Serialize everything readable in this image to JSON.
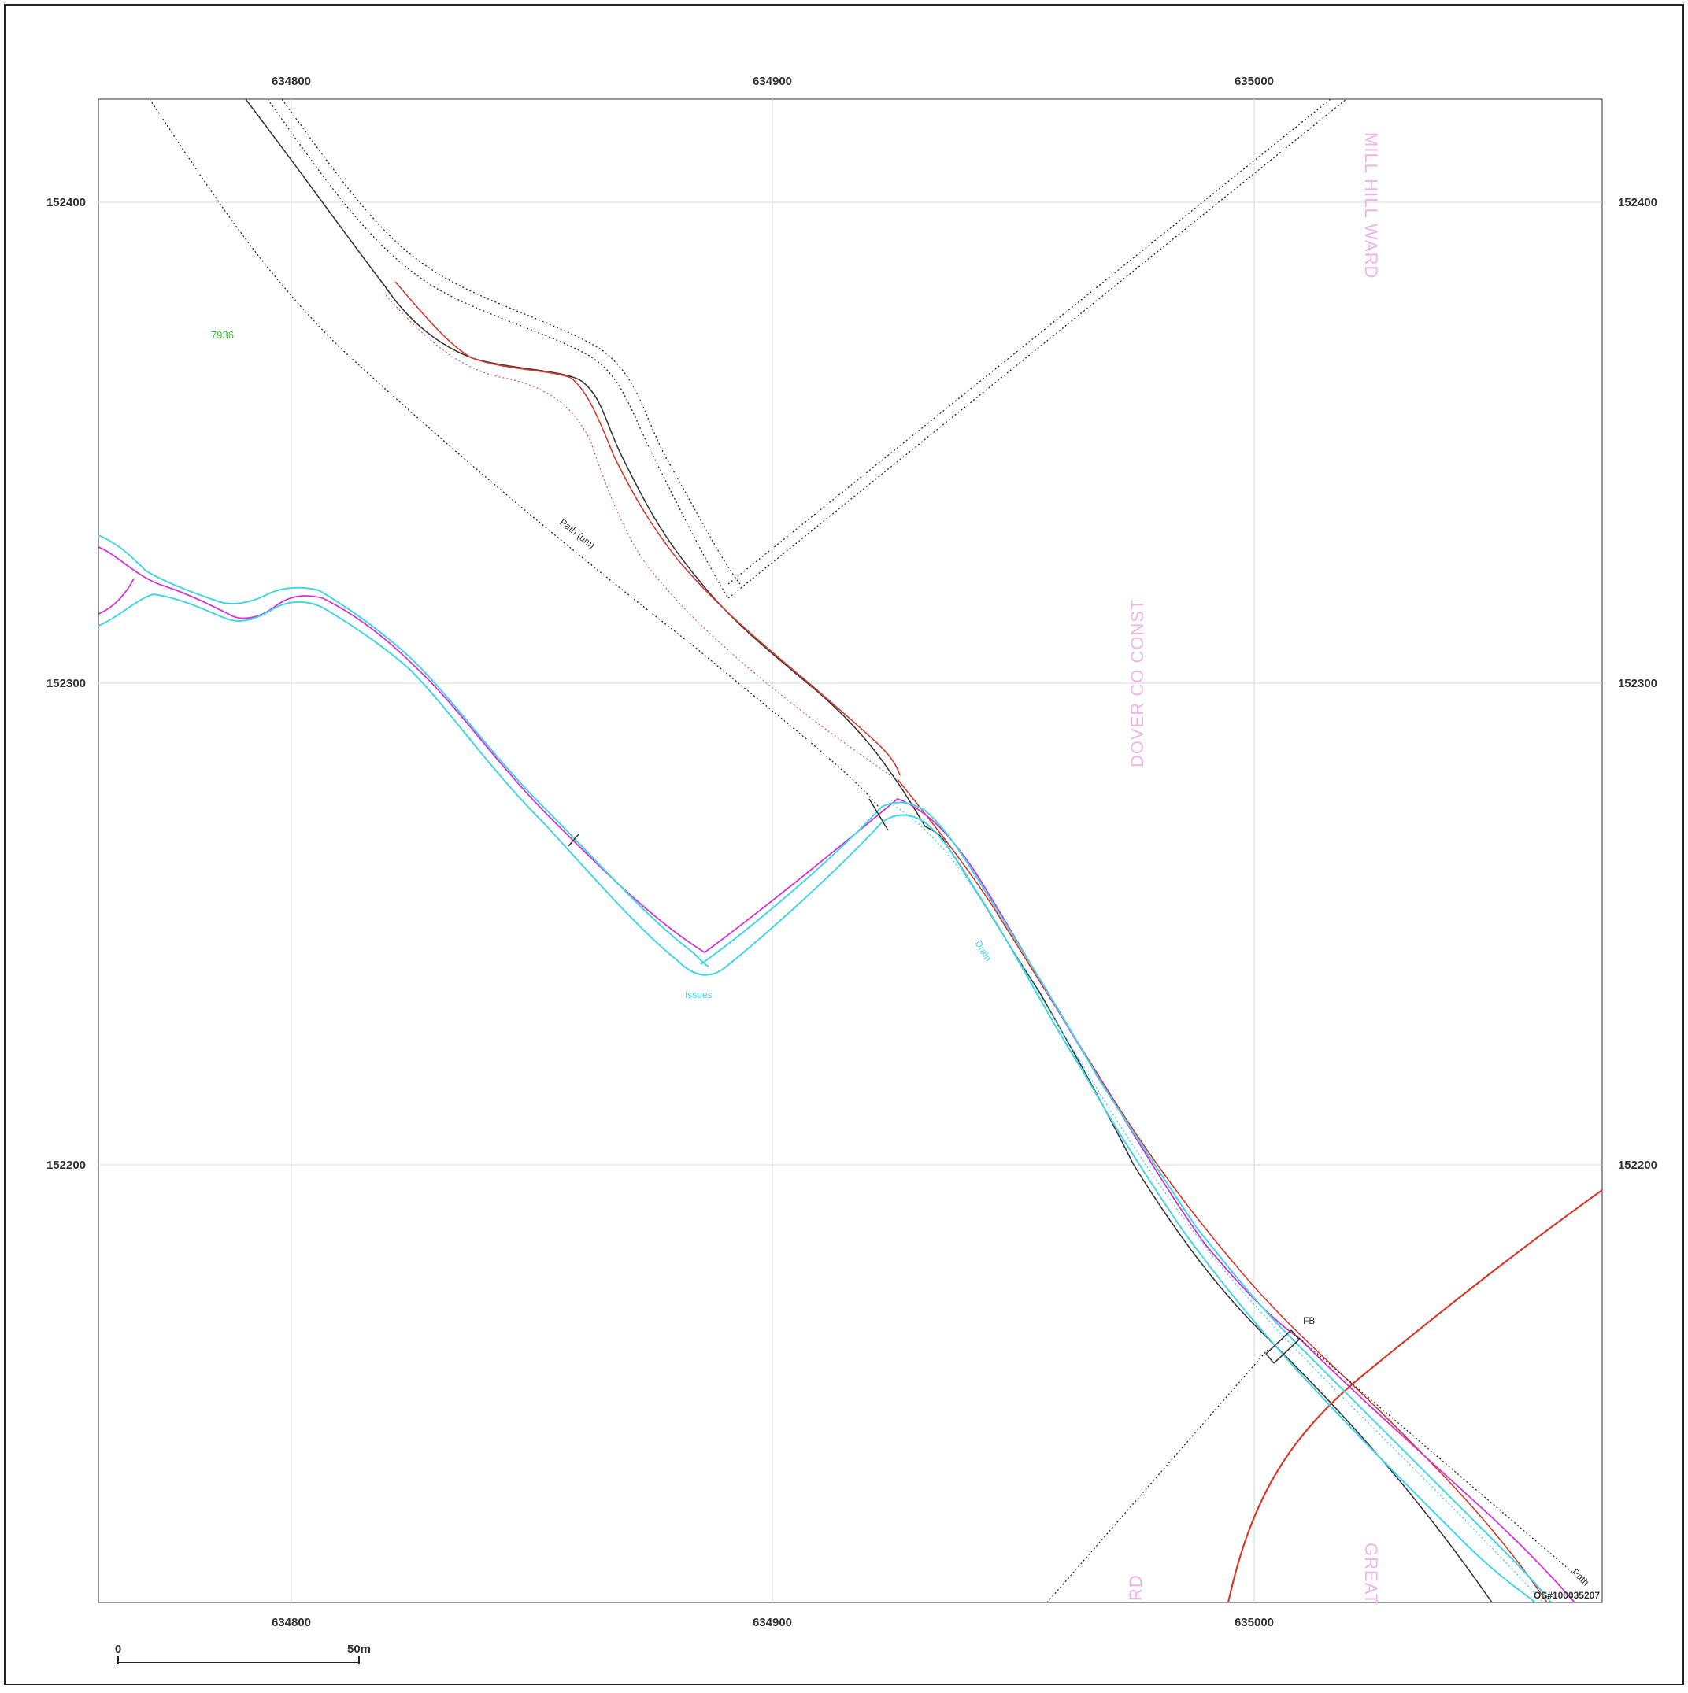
{
  "map": {
    "easting_ticks": [
      "634800",
      "634900",
      "635000"
    ],
    "northing_ticks": [
      "152400",
      "152300",
      "152200"
    ],
    "parcel_id": "7936",
    "path_label": "Path (um)",
    "path_label_short": "Path",
    "footbridge_label": "FB",
    "issues_label": "Issues",
    "drain_label": "Drain",
    "ward_labels": {
      "mill_hill": "MILL HILL WARD",
      "dover": "DOVER CO CONST",
      "great": "GREAT",
      "rd": "RD"
    },
    "copyright": "OS#100035207",
    "scale_bar": {
      "start": "0",
      "end": "50m"
    },
    "colors": {
      "grid": "#d9d9d9",
      "boundary_red": "#d9392b",
      "magenta": "#d633d6",
      "water_cyan": "#44d6e6",
      "ward_text": "#f2b3e6",
      "parcel_green": "#2ecc2e"
    }
  }
}
